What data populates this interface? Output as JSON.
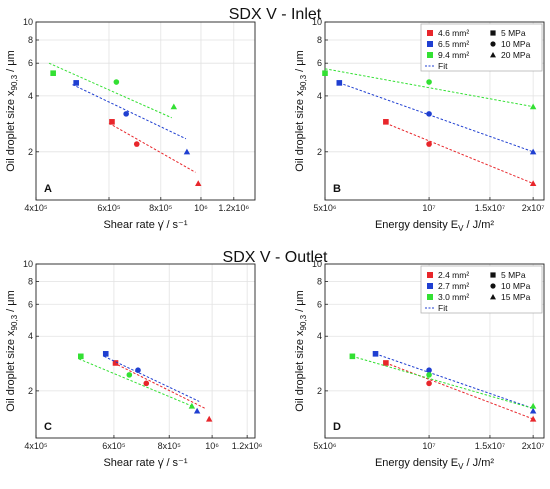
{
  "section_titles": [
    "SDX V - Inlet",
    "SDX V - Outlet"
  ],
  "colors": {
    "red": "#e8262b",
    "blue": "#1f3fd1",
    "green": "#33e033"
  },
  "chart_data": [
    {
      "type": "scatter",
      "panel_label": "A",
      "section": 0,
      "x_scale": "log",
      "y_scale": "log",
      "xlim": [
        400000,
        1350000
      ],
      "ylim": [
        1.1,
        10
      ],
      "xticks": [
        400000,
        600000,
        800000,
        1000000,
        1200000
      ],
      "xtick_labels": [
        "4x10⁵",
        "6x10⁵",
        "8x10⁵",
        "10⁶",
        "1.2x10⁶"
      ],
      "yticks": [
        2,
        4,
        6,
        8,
        10
      ],
      "ytick_labels": [
        "2",
        "4",
        "6",
        "8",
        "10"
      ],
      "xlabel": "Shear rate γ̇ / s⁻¹",
      "ylabel": "Oil droplet size x90,3 / μm",
      "grid": true,
      "series": [
        {
          "color": "red",
          "points": [
            [
              610000,
              2.9,
              "square"
            ],
            [
              700000,
              2.2,
              "circle"
            ],
            [
              985000,
              1.35,
              "triangle"
            ]
          ],
          "fit": [
            [
              600000,
              2.85
            ],
            [
              970000,
              1.55
            ]
          ]
        },
        {
          "color": "blue",
          "points": [
            [
              500000,
              4.7,
              "square"
            ],
            [
              660000,
              3.2,
              "circle"
            ],
            [
              925000,
              2.0,
              "triangle"
            ]
          ],
          "fit": [
            [
              490000,
              4.6
            ],
            [
              920000,
              2.35
            ]
          ]
        },
        {
          "color": "green",
          "points": [
            [
              440000,
              5.3,
              "square"
            ],
            [
              625000,
              4.75,
              "circle"
            ],
            [
              860000,
              3.5,
              "triangle"
            ]
          ],
          "fit": [
            [
              430000,
              6.0
            ],
            [
              850000,
              3.05
            ]
          ]
        }
      ]
    },
    {
      "type": "scatter",
      "panel_label": "B",
      "section": 0,
      "x_scale": "log",
      "y_scale": "log",
      "xlim": [
        5000000,
        21500000
      ],
      "ylim": [
        1.1,
        10
      ],
      "xticks": [
        5000000,
        10000000,
        15000000,
        20000000
      ],
      "xtick_labels": [
        "5x10⁶",
        "10⁷",
        "1.5x10⁷",
        "2x10⁷"
      ],
      "yticks": [
        2,
        4,
        6,
        8,
        10
      ],
      "ytick_labels": [
        "2",
        "4",
        "6",
        "8",
        "10"
      ],
      "xlabel": "Energy density EV / J/m²",
      "ylabel": "Oil droplet size x90,3 / μm",
      "grid": true,
      "series": [
        {
          "color": "red",
          "points": [
            [
              7500000,
              2.9,
              "square"
            ],
            [
              10000000,
              2.2,
              "circle"
            ],
            [
              20000000,
              1.35,
              "triangle"
            ]
          ],
          "fit": [
            [
              7500000,
              2.85
            ],
            [
              20000000,
              1.35
            ]
          ]
        },
        {
          "color": "blue",
          "points": [
            [
              5500000,
              4.7,
              "square"
            ],
            [
              10000000,
              3.2,
              "circle"
            ],
            [
              20000000,
              2.0,
              "triangle"
            ]
          ],
          "fit": [
            [
              5500000,
              4.7
            ],
            [
              20000000,
              2.0
            ]
          ]
        },
        {
          "color": "green",
          "points": [
            [
              5000000,
              5.3,
              "square"
            ],
            [
              10000000,
              4.75,
              "circle"
            ],
            [
              20000000,
              3.5,
              "triangle"
            ]
          ],
          "fit": [
            [
              5000000,
              5.6
            ],
            [
              20000000,
              3.5
            ]
          ]
        }
      ],
      "legend": {
        "position": "top-right",
        "colors": [
          {
            "label": "4.6 mm²",
            "color": "red"
          },
          {
            "label": "6.5 mm²",
            "color": "blue"
          },
          {
            "label": "9.4 mm²",
            "color": "green"
          }
        ],
        "fit_label": "Fit",
        "shapes": [
          {
            "label": "5 MPa",
            "shape": "square"
          },
          {
            "label": "10 MPa",
            "shape": "circle"
          },
          {
            "label": "20 MPa",
            "shape": "triangle"
          }
        ]
      }
    },
    {
      "type": "scatter",
      "panel_label": "C",
      "section": 1,
      "x_scale": "log",
      "y_scale": "log",
      "xlim": [
        400000,
        1250000
      ],
      "ylim": [
        1.1,
        10
      ],
      "xticks": [
        400000,
        600000,
        800000,
        1000000,
        1200000
      ],
      "xtick_labels": [
        "4x10⁵",
        "6x10⁵",
        "8x10⁵",
        "10⁶",
        "1.2x10⁶"
      ],
      "yticks": [
        2,
        4,
        6,
        8,
        10
      ],
      "ytick_labels": [
        "2",
        "4",
        "6",
        "8",
        "10"
      ],
      "xlabel": "Shear rate γ̇ / s⁻¹",
      "ylabel": "Oil droplet size x90,3 / μm",
      "grid": true,
      "series": [
        {
          "color": "red",
          "points": [
            [
              605000,
              2.85,
              "square"
            ],
            [
              710000,
              2.2,
              "circle"
            ],
            [
              985000,
              1.4,
              "triangle"
            ]
          ],
          "fit": [
            [
              600000,
              2.85
            ],
            [
              965000,
              1.6
            ]
          ]
        },
        {
          "color": "blue",
          "points": [
            [
              575000,
              3.2,
              "square"
            ],
            [
              680000,
              2.6,
              "circle"
            ],
            [
              925000,
              1.55,
              "triangle"
            ]
          ],
          "fit": [
            [
              570000,
              3.1
            ],
            [
              935000,
              1.75
            ]
          ]
        },
        {
          "color": "green",
          "points": [
            [
              505000,
              3.1,
              "square"
            ],
            [
              650000,
              2.45,
              "circle"
            ],
            [
              900000,
              1.65,
              "triangle"
            ]
          ],
          "fit": [
            [
              500000,
              3.0
            ],
            [
              900000,
              1.65
            ]
          ]
        }
      ]
    },
    {
      "type": "scatter",
      "panel_label": "D",
      "section": 1,
      "x_scale": "log",
      "y_scale": "log",
      "xlim": [
        5000000,
        21500000
      ],
      "ylim": [
        1.1,
        10
      ],
      "xticks": [
        5000000,
        10000000,
        15000000,
        20000000
      ],
      "xtick_labels": [
        "5x10⁶",
        "10⁷",
        "1.5x10⁷",
        "2x10⁷"
      ],
      "yticks": [
        2,
        4,
        6,
        8,
        10
      ],
      "ytick_labels": [
        "2",
        "4",
        "6",
        "8",
        "10"
      ],
      "xlabel": "Energy density EV / J/m²",
      "ylabel": "Oil droplet size x90,3 / μm",
      "grid": true,
      "series": [
        {
          "color": "red",
          "points": [
            [
              7500000,
              2.85,
              "square"
            ],
            [
              10000000,
              2.2,
              "circle"
            ],
            [
              20000000,
              1.4,
              "triangle"
            ]
          ],
          "fit": [
            [
              7500000,
              2.85
            ],
            [
              20000000,
              1.4
            ]
          ]
        },
        {
          "color": "blue",
          "points": [
            [
              7000000,
              3.2,
              "square"
            ],
            [
              10000000,
              2.6,
              "circle"
            ],
            [
              20000000,
              1.55,
              "triangle"
            ]
          ],
          "fit": [
            [
              7000000,
              3.2
            ],
            [
              20000000,
              1.6
            ]
          ]
        },
        {
          "color": "green",
          "points": [
            [
              6000000,
              3.1,
              "square"
            ],
            [
              10000000,
              2.45,
              "circle"
            ],
            [
              20000000,
              1.65,
              "triangle"
            ]
          ],
          "fit": [
            [
              6000000,
              3.1
            ],
            [
              20000000,
              1.6
            ]
          ]
        }
      ],
      "legend": {
        "position": "top-right",
        "colors": [
          {
            "label": "2.4 mm²",
            "color": "red"
          },
          {
            "label": "2.7 mm²",
            "color": "blue"
          },
          {
            "label": "3.0 mm²",
            "color": "green"
          }
        ],
        "fit_label": "Fit",
        "shapes": [
          {
            "label": "5 MPa",
            "shape": "square"
          },
          {
            "label": "10 MPa",
            "shape": "circle"
          },
          {
            "label": "15 MPa",
            "shape": "triangle"
          }
        ]
      }
    }
  ]
}
